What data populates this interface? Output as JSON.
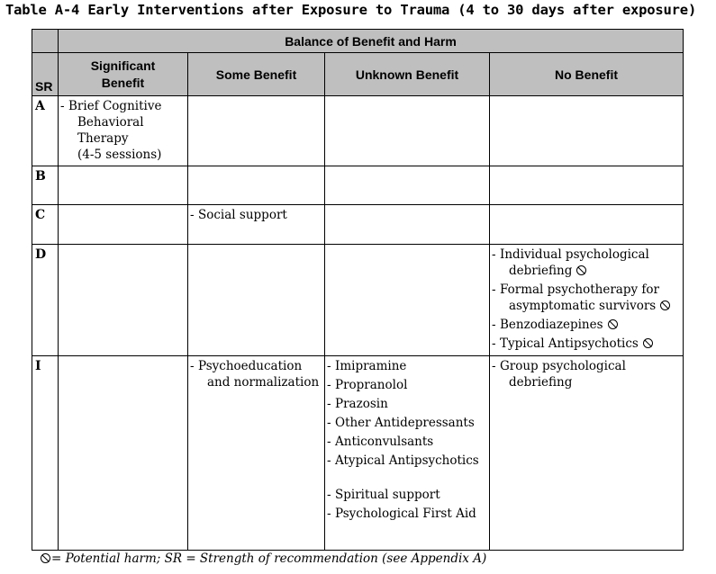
{
  "title": "Table A-4 Early Interventions after Exposure to Trauma (4 to 30 days after exposure)",
  "table": {
    "group_header": "Balance of Benefit and Harm",
    "columns": {
      "sr": "SR",
      "significant": "Significant Benefit",
      "some": "Some Benefit",
      "unknown": "Unknown Benefit",
      "none": "No Benefit"
    },
    "rows": {
      "A": {
        "sr": "A",
        "significant": [
          {
            "first": "Brief Cognitive",
            "rest": [
              "Behavioral",
              "Therapy",
              "(4-5 sessions)"
            ]
          }
        ]
      },
      "B": {
        "sr": "B"
      },
      "C": {
        "sr": "C",
        "some": [
          {
            "first": "Social support"
          }
        ]
      },
      "D": {
        "sr": "D",
        "none": [
          {
            "first": "Individual psychological",
            "rest": [
              "debriefing"
            ],
            "harm": true
          },
          {
            "first": "Formal psychotherapy for",
            "rest": [
              "asymptomatic survivors"
            ],
            "harm": true
          },
          {
            "first": "Benzodiazepines",
            "harm": true
          },
          {
            "first": "Typical Antipsychotics",
            "harm": true
          }
        ]
      },
      "I": {
        "sr": "I",
        "some": [
          {
            "first": "Psychoeducation",
            "rest": [
              "and normalization"
            ]
          }
        ],
        "unknown": [
          {
            "first": "Imipramine"
          },
          {
            "first": "Propranolol"
          },
          {
            "first": "Prazosin"
          },
          {
            "first": "Other Antidepressants"
          },
          {
            "first": "Anticonvulsants"
          },
          {
            "first": "Atypical Antipsychotics"
          }
        ],
        "unknown2": [
          {
            "first": "Spiritual support"
          },
          {
            "first": "Psychological First Aid"
          }
        ],
        "none": [
          {
            "first": "Group psychological",
            "rest": [
              "debriefing"
            ]
          }
        ]
      }
    }
  },
  "footnote": "= Potential harm; SR = Strength of recommendation (see Appendix A)",
  "icons": {
    "harm": "potential-harm-icon"
  }
}
